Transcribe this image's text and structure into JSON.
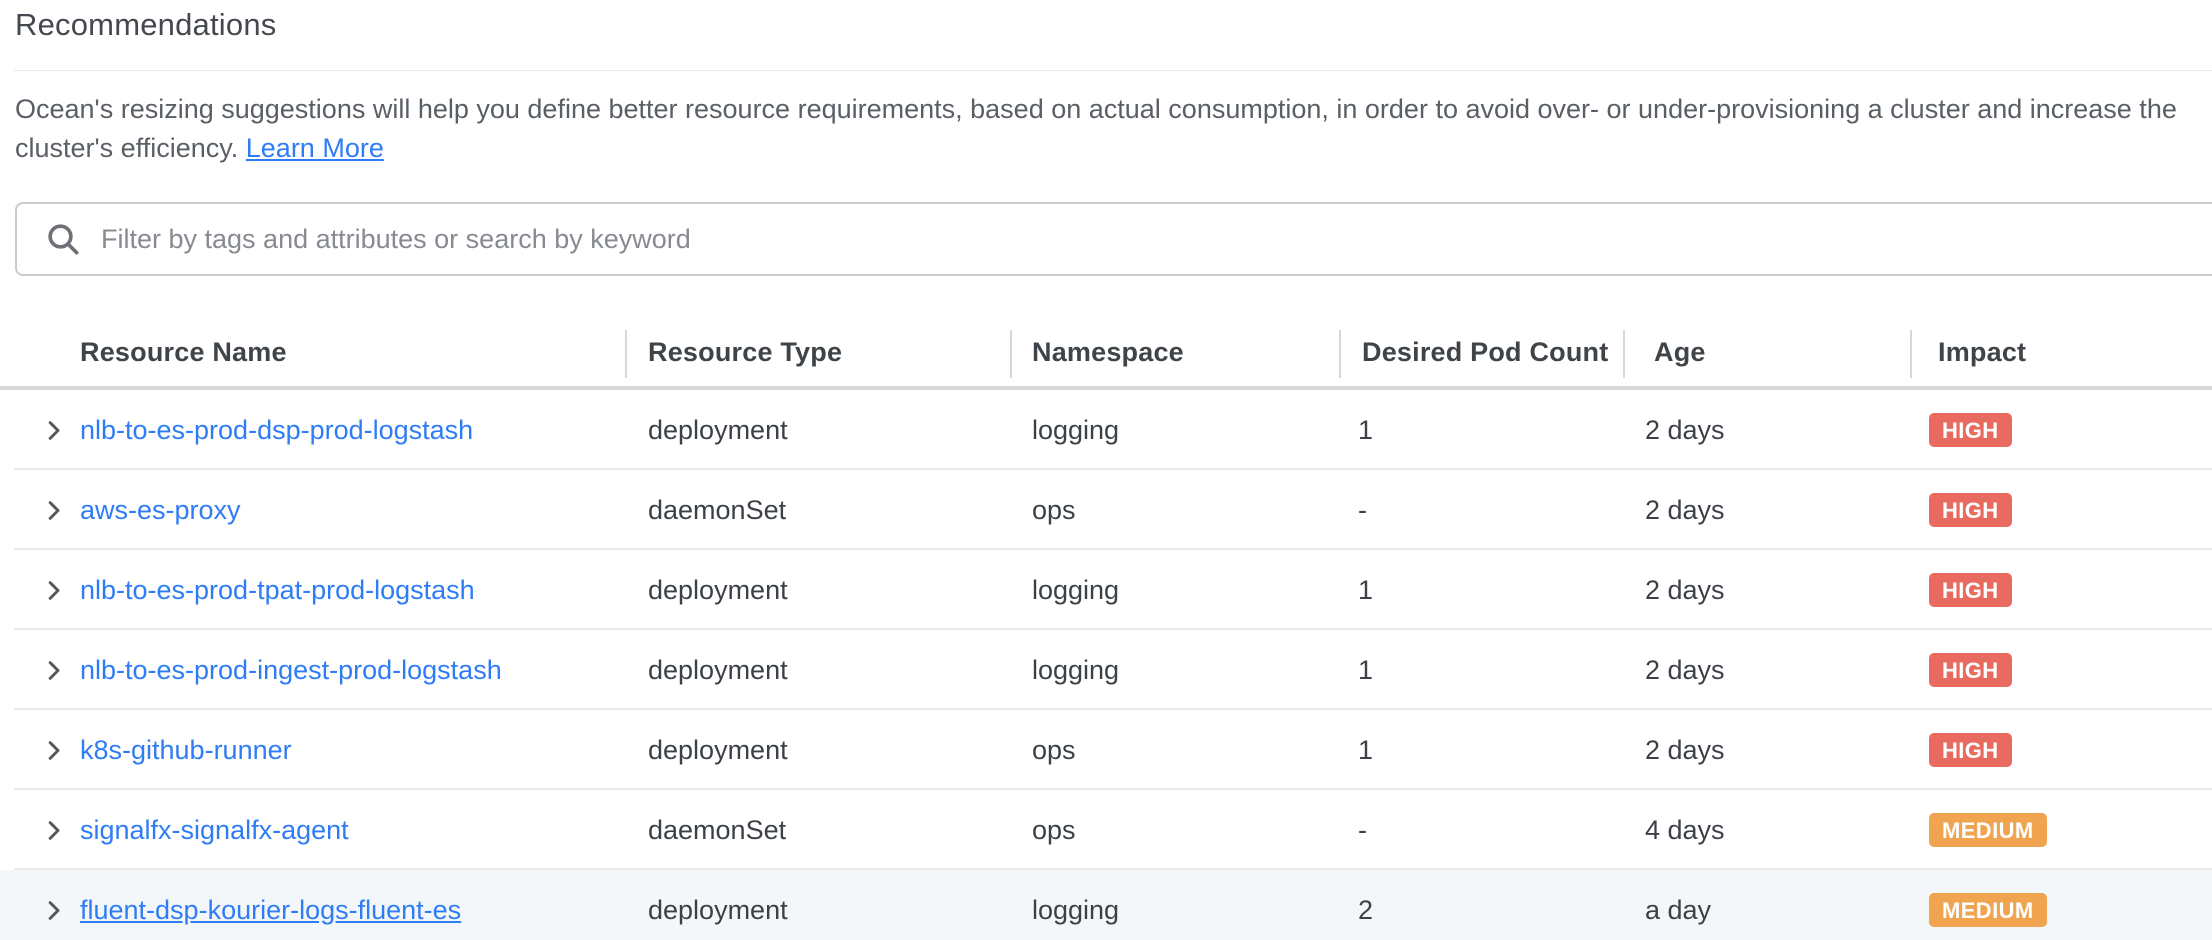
{
  "page": {
    "title": "Recommendations",
    "description": "Ocean's resizing suggestions will help you define better resource requirements, based on actual consumption, in order to avoid over- or under-provisioning a cluster and increase the cluster's efficiency.",
    "learn_more_label": "Learn More"
  },
  "search": {
    "placeholder": "Filter by tags and attributes or search by keyword",
    "icon": "search-icon"
  },
  "table": {
    "columns": {
      "name": "Resource Name",
      "type": "Resource Type",
      "namespace": "Namespace",
      "pods": "Desired Pod Count",
      "age": "Age",
      "impact": "Impact"
    },
    "rows": [
      {
        "name": "nlb-to-es-prod-dsp-prod-logstash",
        "type": "deployment",
        "namespace": "logging",
        "pods": "1",
        "age": "2 days",
        "impact": "HIGH",
        "highlighted": false
      },
      {
        "name": "aws-es-proxy",
        "type": "daemonSet",
        "namespace": "ops",
        "pods": "-",
        "age": "2 days",
        "impact": "HIGH",
        "highlighted": false
      },
      {
        "name": "nlb-to-es-prod-tpat-prod-logstash",
        "type": "deployment",
        "namespace": "logging",
        "pods": "1",
        "age": "2 days",
        "impact": "HIGH",
        "highlighted": false
      },
      {
        "name": "nlb-to-es-prod-ingest-prod-logstash",
        "type": "deployment",
        "namespace": "logging",
        "pods": "1",
        "age": "2 days",
        "impact": "HIGH",
        "highlighted": false
      },
      {
        "name": "k8s-github-runner",
        "type": "deployment",
        "namespace": "ops",
        "pods": "1",
        "age": "2 days",
        "impact": "HIGH",
        "highlighted": false
      },
      {
        "name": "signalfx-signalfx-agent",
        "type": "daemonSet",
        "namespace": "ops",
        "pods": "-",
        "age": "4 days",
        "impact": "MEDIUM",
        "highlighted": false
      },
      {
        "name": "fluent-dsp-kourier-logs-fluent-es",
        "type": "deployment",
        "namespace": "logging",
        "pods": "2",
        "age": "a day",
        "impact": "MEDIUM",
        "highlighted": true
      }
    ]
  },
  "colors": {
    "link_blue": "#2e7cf6",
    "impact_high": "#e96b60",
    "impact_medium": "#f0a44f",
    "row_highlight": "#f4f7fa",
    "chevron_gray": "#54585d"
  }
}
